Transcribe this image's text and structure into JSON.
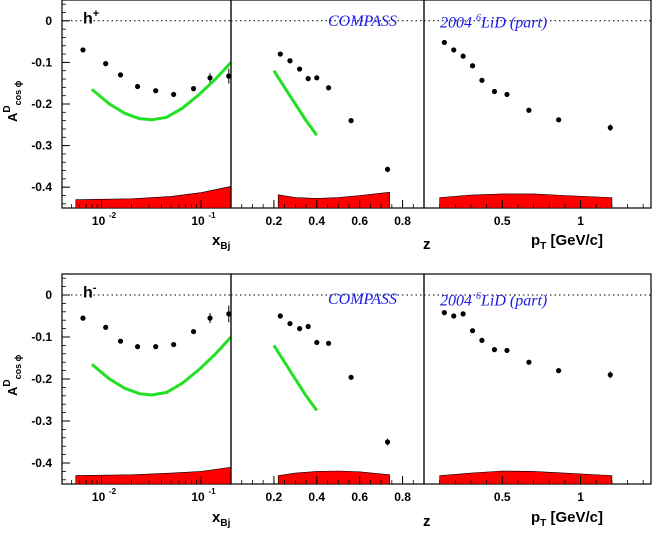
{
  "chart_data": [
    {
      "type": "scatter",
      "ylabel": "A",
      "ylabel_sup": "D",
      "ylabel_sub": "cos ϕ",
      "hadron": "h",
      "hadron_charge": "+",
      "caption_experiment": "COMPASS",
      "caption_target_pre": "2004 ",
      "caption_target_sup": "6",
      "caption_target_post": "LiD (part)",
      "ylim": [
        -0.45,
        0.05
      ],
      "yticks": [
        0,
        -0.1,
        -0.2,
        -0.3,
        -0.4
      ],
      "yticklabels": [
        "0",
        "-0.1",
        "-0.2",
        "-0.3",
        "-0.4"
      ],
      "panels": [
        {
          "variable": "x",
          "xlabel_main": "x",
          "xlabel_sub": "Bj",
          "xscale": "log",
          "xlim": [
            0.004,
            0.2
          ],
          "xticks": [
            0.01,
            0.1
          ],
          "xticklabels": [
            "10",
            "10"
          ],
          "xticklabel_exps": [
            "-2",
            "-1"
          ],
          "points": [
            {
              "x": 0.0065,
              "y": -0.07,
              "err": 0.004
            },
            {
              "x": 0.011,
              "y": -0.103,
              "err": 0.004
            },
            {
              "x": 0.0155,
              "y": -0.13,
              "err": 0.004
            },
            {
              "x": 0.023,
              "y": -0.158,
              "err": 0.004
            },
            {
              "x": 0.035,
              "y": -0.168,
              "err": 0.004
            },
            {
              "x": 0.053,
              "y": -0.177,
              "err": 0.004
            },
            {
              "x": 0.084,
              "y": -0.163,
              "err": 0.005
            },
            {
              "x": 0.123,
              "y": -0.137,
              "err": 0.011
            },
            {
              "x": 0.19,
              "y": -0.133,
              "err": 0.018
            }
          ],
          "curve": [
            [
              0.008,
              -0.165
            ],
            [
              0.012,
              -0.2
            ],
            [
              0.017,
              -0.222
            ],
            [
              0.024,
              -0.235
            ],
            [
              0.032,
              -0.238
            ],
            [
              0.045,
              -0.232
            ],
            [
              0.065,
              -0.21
            ],
            [
              0.095,
              -0.178
            ],
            [
              0.14,
              -0.14
            ],
            [
              0.2,
              -0.1
            ]
          ],
          "band_top": [
            [
              0.0055,
              -0.43
            ],
            [
              0.02,
              -0.428
            ],
            [
              0.05,
              -0.422
            ],
            [
              0.1,
              -0.413
            ],
            [
              0.2,
              -0.398
            ]
          ]
        },
        {
          "variable": "z",
          "xlabel_main": "z",
          "xlabel_sub": "",
          "xscale": "linear",
          "xlim": [
            0.0,
            0.9
          ],
          "xticks": [
            0.2,
            0.4,
            0.6,
            0.8
          ],
          "xticklabels": [
            "0.2",
            "0.4",
            "0.6",
            "0.8"
          ],
          "points": [
            {
              "x": 0.23,
              "y": -0.08,
              "err": 0.004
            },
            {
              "x": 0.275,
              "y": -0.096,
              "err": 0.004
            },
            {
              "x": 0.32,
              "y": -0.116,
              "err": 0.004
            },
            {
              "x": 0.36,
              "y": -0.139,
              "err": 0.004
            },
            {
              "x": 0.4,
              "y": -0.137,
              "err": 0.004
            },
            {
              "x": 0.455,
              "y": -0.161,
              "err": 0.004
            },
            {
              "x": 0.56,
              "y": -0.24,
              "err": 0.005
            },
            {
              "x": 0.73,
              "y": -0.357,
              "err": 0.007
            }
          ],
          "curve": [
            [
              0.2,
              -0.12
            ],
            [
              0.25,
              -0.16
            ],
            [
              0.3,
              -0.2
            ],
            [
              0.35,
              -0.24
            ],
            [
              0.4,
              -0.275
            ]
          ],
          "band_top": [
            [
              0.22,
              -0.418
            ],
            [
              0.3,
              -0.425
            ],
            [
              0.4,
              -0.427
            ],
            [
              0.5,
              -0.425
            ],
            [
              0.6,
              -0.42
            ],
            [
              0.74,
              -0.412
            ]
          ]
        },
        {
          "variable": "pT",
          "xlabel_main": "p",
          "xlabel_sub": "T",
          "xlabel_unit": " [GeV/c]",
          "xscale": "linear",
          "xlim": [
            0.0,
            1.45
          ],
          "xticks": [
            0.5,
            1.0
          ],
          "xticklabels": [
            "0.5",
            "1"
          ],
          "points": [
            {
              "x": 0.13,
              "y": -0.052,
              "err": 0.004
            },
            {
              "x": 0.19,
              "y": -0.07,
              "err": 0.004
            },
            {
              "x": 0.25,
              "y": -0.085,
              "err": 0.004
            },
            {
              "x": 0.31,
              "y": -0.108,
              "err": 0.004
            },
            {
              "x": 0.37,
              "y": -0.143,
              "err": 0.004
            },
            {
              "x": 0.45,
              "y": -0.17,
              "err": 0.004
            },
            {
              "x": 0.53,
              "y": -0.177,
              "err": 0.004
            },
            {
              "x": 0.67,
              "y": -0.215,
              "err": 0.004
            },
            {
              "x": 0.86,
              "y": -0.238,
              "err": 0.005
            },
            {
              "x": 1.19,
              "y": -0.257,
              "err": 0.008
            }
          ],
          "curve": [],
          "band_top": [
            [
              0.1,
              -0.425
            ],
            [
              0.3,
              -0.419
            ],
            [
              0.5,
              -0.416
            ],
            [
              0.7,
              -0.416
            ],
            [
              0.9,
              -0.42
            ],
            [
              1.2,
              -0.425
            ]
          ]
        }
      ]
    },
    {
      "type": "scatter",
      "ylabel": "A",
      "ylabel_sup": "D",
      "ylabel_sub": "cos ϕ",
      "hadron": "h",
      "hadron_charge": "-",
      "caption_experiment": "COMPASS",
      "caption_target_pre": "2004 ",
      "caption_target_sup": "6",
      "caption_target_post": "LiD (part)",
      "ylim": [
        -0.45,
        0.05
      ],
      "yticks": [
        0,
        -0.1,
        -0.2,
        -0.3,
        -0.4
      ],
      "yticklabels": [
        "0",
        "-0.1",
        "-0.2",
        "-0.3",
        "-0.4"
      ],
      "panels": [
        {
          "variable": "x",
          "xlabel_main": "x",
          "xlabel_sub": "Bj",
          "xscale": "log",
          "xlim": [
            0.004,
            0.2
          ],
          "xticks": [
            0.01,
            0.1
          ],
          "xticklabels": [
            "10",
            "10"
          ],
          "xticklabel_exps": [
            "-2",
            "-1"
          ],
          "points": [
            {
              "x": 0.0065,
              "y": -0.055,
              "err": 0.004
            },
            {
              "x": 0.011,
              "y": -0.077,
              "err": 0.004
            },
            {
              "x": 0.0155,
              "y": -0.11,
              "err": 0.004
            },
            {
              "x": 0.023,
              "y": -0.123,
              "err": 0.004
            },
            {
              "x": 0.035,
              "y": -0.123,
              "err": 0.004
            },
            {
              "x": 0.053,
              "y": -0.118,
              "err": 0.004
            },
            {
              "x": 0.084,
              "y": -0.087,
              "err": 0.006
            },
            {
              "x": 0.123,
              "y": -0.055,
              "err": 0.012
            },
            {
              "x": 0.19,
              "y": -0.045,
              "err": 0.02
            }
          ],
          "curve": [
            [
              0.008,
              -0.165
            ],
            [
              0.012,
              -0.2
            ],
            [
              0.017,
              -0.222
            ],
            [
              0.024,
              -0.235
            ],
            [
              0.032,
              -0.238
            ],
            [
              0.045,
              -0.232
            ],
            [
              0.065,
              -0.21
            ],
            [
              0.095,
              -0.178
            ],
            [
              0.14,
              -0.14
            ],
            [
              0.2,
              -0.1
            ]
          ],
          "band_top": [
            [
              0.0055,
              -0.43
            ],
            [
              0.02,
              -0.428
            ],
            [
              0.05,
              -0.424
            ],
            [
              0.1,
              -0.42
            ],
            [
              0.2,
              -0.41
            ]
          ]
        },
        {
          "variable": "z",
          "xlabel_main": "z",
          "xlabel_sub": "",
          "xscale": "linear",
          "xlim": [
            0.0,
            0.9
          ],
          "xticks": [
            0.2,
            0.4,
            0.6,
            0.8
          ],
          "xticklabels": [
            "0.2",
            "0.4",
            "0.6",
            "0.8"
          ],
          "points": [
            {
              "x": 0.23,
              "y": -0.05,
              "err": 0.004
            },
            {
              "x": 0.275,
              "y": -0.068,
              "err": 0.004
            },
            {
              "x": 0.32,
              "y": -0.08,
              "err": 0.004
            },
            {
              "x": 0.36,
              "y": -0.075,
              "err": 0.004
            },
            {
              "x": 0.4,
              "y": -0.113,
              "err": 0.006
            },
            {
              "x": 0.455,
              "y": -0.115,
              "err": 0.004
            },
            {
              "x": 0.56,
              "y": -0.196,
              "err": 0.005
            },
            {
              "x": 0.73,
              "y": -0.35,
              "err": 0.008
            }
          ],
          "curve": [
            [
              0.2,
              -0.12
            ],
            [
              0.25,
              -0.16
            ],
            [
              0.3,
              -0.2
            ],
            [
              0.35,
              -0.24
            ],
            [
              0.4,
              -0.275
            ]
          ],
          "band_top": [
            [
              0.22,
              -0.43
            ],
            [
              0.3,
              -0.424
            ],
            [
              0.4,
              -0.42
            ],
            [
              0.5,
              -0.419
            ],
            [
              0.6,
              -0.421
            ],
            [
              0.74,
              -0.428
            ]
          ]
        },
        {
          "variable": "pT",
          "xlabel_main": "p",
          "xlabel_sub": "T",
          "xlabel_unit": " [GeV/c]",
          "xscale": "linear",
          "xlim": [
            0.0,
            1.45
          ],
          "xticks": [
            0.5,
            1.0
          ],
          "xticklabels": [
            "0.5",
            "1"
          ],
          "points": [
            {
              "x": 0.13,
              "y": -0.042,
              "err": 0.004
            },
            {
              "x": 0.19,
              "y": -0.05,
              "err": 0.004
            },
            {
              "x": 0.25,
              "y": -0.045,
              "err": 0.004
            },
            {
              "x": 0.31,
              "y": -0.085,
              "err": 0.004
            },
            {
              "x": 0.37,
              "y": -0.108,
              "err": 0.004
            },
            {
              "x": 0.45,
              "y": -0.13,
              "err": 0.004
            },
            {
              "x": 0.53,
              "y": -0.132,
              "err": 0.004
            },
            {
              "x": 0.67,
              "y": -0.16,
              "err": 0.004
            },
            {
              "x": 0.86,
              "y": -0.18,
              "err": 0.005
            },
            {
              "x": 1.19,
              "y": -0.19,
              "err": 0.008
            }
          ],
          "curve": [],
          "band_top": [
            [
              0.1,
              -0.43
            ],
            [
              0.3,
              -0.424
            ],
            [
              0.5,
              -0.419
            ],
            [
              0.7,
              -0.42
            ],
            [
              0.9,
              -0.424
            ],
            [
              1.2,
              -0.43
            ]
          ]
        }
      ]
    }
  ],
  "colors": {
    "points": "#000000",
    "curve": "#22e022",
    "band": "#ff0000",
    "caption": "#1a1ae6",
    "zero_line": "#000000"
  }
}
